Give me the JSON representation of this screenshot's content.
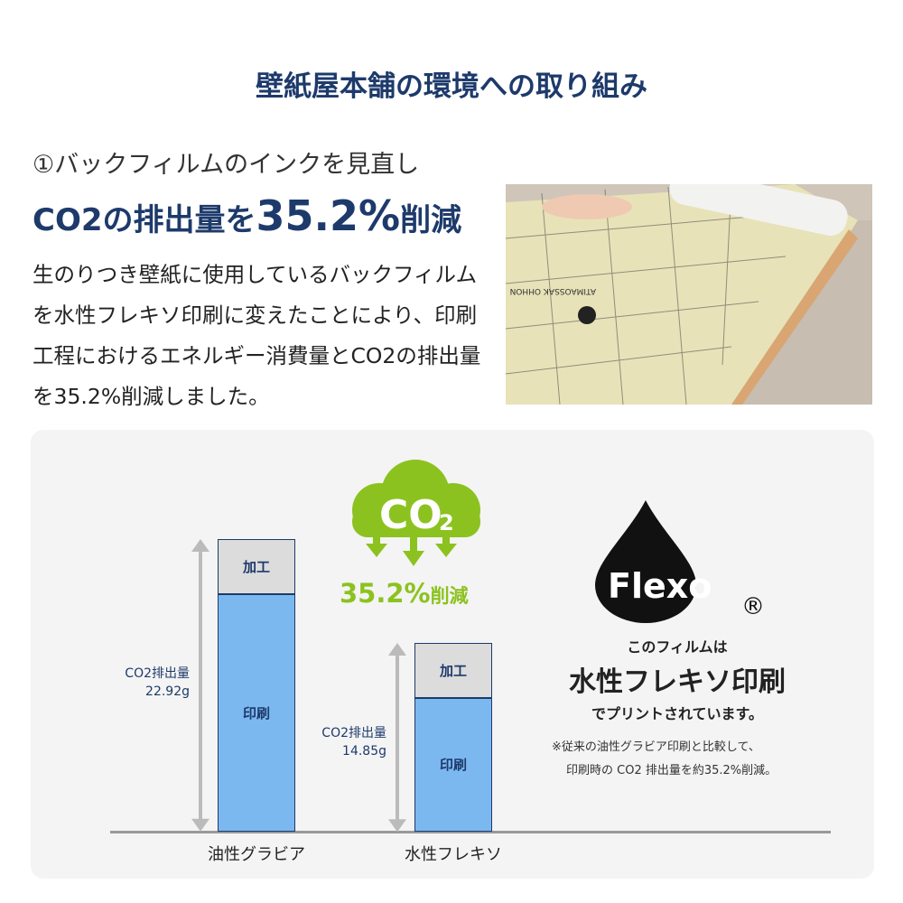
{
  "title": "壁紙屋本舗の環境への取り組み",
  "section": {
    "subtitle": "①バックフィルムのインクを見直し",
    "headline_pre": "CO2の排出量を",
    "headline_value": "35.2%",
    "headline_post": "削減",
    "body": "生のりつき壁紙に使用しているバックフィルムを水性フレキソ印刷に変えたことにより、印刷工程におけるエネルギー消費量とCO2の排出量を35.2%削減しました。"
  },
  "photo": {
    "print_text": "ATIMAOSSAK OHHON"
  },
  "cloud": {
    "text": "CO",
    "sub": "2",
    "reduction": "35.2%",
    "reduction_suffix": "削減",
    "color": "#8cc21f"
  },
  "flexo": {
    "logo": "Flexo",
    "registered": "®",
    "line1": "このフィルムは",
    "line2": "水性フレキソ印刷",
    "line3": "でプリントされています。",
    "note1": "※従来の油性グラビア印刷と比較して、",
    "note2": "印刷時の CO2 排出量を約35.2%削減。"
  },
  "chart_data": {
    "type": "bar",
    "stacked": true,
    "categories": [
      "油性グラビア",
      "水性フレキソ"
    ],
    "series": [
      {
        "name": "印刷",
        "values": [
          18.6,
          10.5
        ]
      },
      {
        "name": "加工",
        "values": [
          4.3,
          4.3
        ]
      }
    ],
    "totals": [
      {
        "label": "CO2排出量",
        "value": "22.92g"
      },
      {
        "label": "CO2排出量",
        "value": "14.85g"
      }
    ],
    "colors": {
      "print": "#7cb8f0",
      "process": "#dcdcdc",
      "border": "#1d3a6b"
    }
  }
}
